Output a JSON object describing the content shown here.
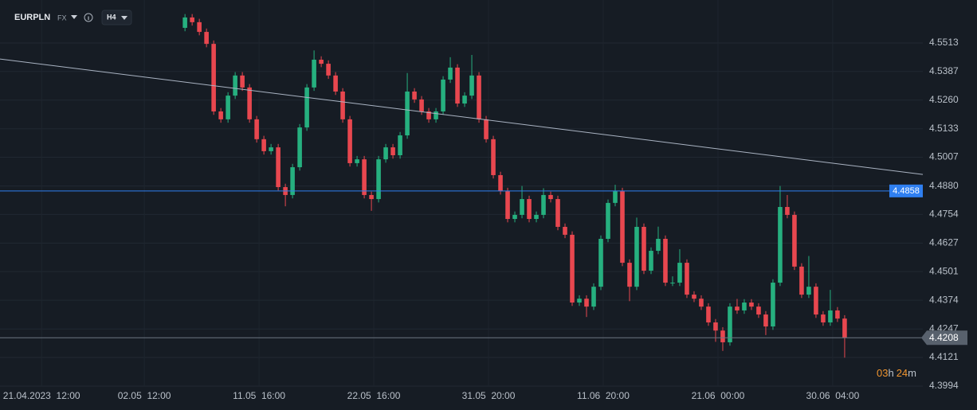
{
  "chart_data": {
    "type": "candlestick",
    "symbol": "EURPLN",
    "market": "FX",
    "timeframe": "H4",
    "countdown": [
      "03",
      "h",
      "24",
      "m"
    ],
    "up_color": "#26b07f",
    "down_color": "#e8474f",
    "grid": true,
    "ylim": [
      4.3994,
      4.5668
    ],
    "yticks": [
      4.5513,
      4.5387,
      {
        "value": 4.526,
        "label": "4.5260"
      },
      4.5133,
      4.5007,
      {
        "value": 4.488,
        "label": "4.4880"
      },
      4.4754,
      4.4627,
      4.4501,
      4.4374,
      4.4247,
      4.4121,
      4.3994
    ],
    "xlim": [
      -25.8,
      102.9
    ],
    "xticks": [
      {
        "value": -20,
        "label": "21.04.2023  12:00"
      },
      {
        "value": -5.67,
        "label": "02.05  12:00"
      },
      {
        "value": 10.33,
        "label": "11.05  16:00"
      },
      {
        "value": 26.33,
        "label": "22.05  16:00"
      },
      {
        "value": 42.33,
        "label": "31.05  20:00"
      },
      {
        "value": 58.33,
        "label": "11.06  20:00"
      },
      {
        "value": 74.33,
        "label": "21.06  00:00"
      },
      {
        "value": 90.33,
        "label": "30.06  04:00"
      }
    ],
    "horizontal_line": {
      "value": 4.4858,
      "label": "4.4858",
      "color": "#2f7ff0"
    },
    "last_price": {
      "value": 4.4208,
      "label": "4.4208"
    },
    "trend_line": {
      "x": [
        -25.8,
        102.9
      ],
      "y": [
        4.5442,
        4.4931
      ],
      "color": "#aab4c3"
    },
    "candles": [
      [
        4.558,
        4.5641,
        4.5565,
        4.5626
      ],
      [
        4.5626,
        4.5641,
        4.559,
        4.5605
      ],
      [
        4.5605,
        4.562,
        4.5547,
        4.5562
      ],
      [
        4.5562,
        4.5577,
        4.5494,
        4.5509
      ],
      [
        4.5509,
        4.5524,
        4.5195,
        4.521
      ],
      [
        4.521,
        4.5225,
        4.516,
        4.5175
      ],
      [
        4.5175,
        4.5295,
        4.516,
        4.528
      ],
      [
        4.528,
        4.5384,
        4.5265,
        4.5369
      ],
      [
        4.5369,
        4.5384,
        4.5301,
        4.5316
      ],
      [
        4.5316,
        4.5331,
        4.516,
        4.5175
      ],
      [
        4.5175,
        4.519,
        4.5072,
        4.5087
      ],
      [
        4.5087,
        4.5102,
        4.5019,
        4.5034
      ],
      [
        4.5034,
        4.5066,
        4.5019,
        4.5051
      ],
      [
        4.5051,
        4.5066,
        4.486,
        4.4875
      ],
      [
        4.4875,
        4.489,
        4.479,
        4.484
      ],
      [
        4.484,
        4.4978,
        4.4825,
        4.4963
      ],
      [
        4.4963,
        4.5154,
        4.4948,
        4.5139
      ],
      [
        4.5139,
        4.5331,
        4.5124,
        4.5316
      ],
      [
        4.5316,
        4.548,
        4.5301,
        4.5439
      ],
      [
        4.5439,
        4.5454,
        4.5406,
        4.5421
      ],
      [
        4.5421,
        4.5436,
        4.5354,
        4.5369
      ],
      [
        4.5369,
        4.5384,
        4.5283,
        4.5298
      ],
      [
        4.5298,
        4.5313,
        4.516,
        4.5175
      ],
      [
        4.5175,
        4.519,
        4.4966,
        4.4981
      ],
      [
        4.4981,
        4.5013,
        4.4966,
        4.4998
      ],
      [
        4.4998,
        4.5013,
        4.4825,
        4.484
      ],
      [
        4.484,
        4.4855,
        4.477,
        4.4822
      ],
      [
        4.4822,
        4.5013,
        4.4807,
        4.4998
      ],
      [
        4.4998,
        4.5066,
        4.4983,
        4.5051
      ],
      [
        4.5051,
        4.5066,
        4.5001,
        4.5016
      ],
      [
        4.5016,
        4.5119,
        4.5001,
        4.5104
      ],
      [
        4.5104,
        4.538,
        4.5089,
        4.5298
      ],
      [
        4.5298,
        4.5313,
        4.5248,
        4.5263
      ],
      [
        4.5263,
        4.5278,
        4.5195,
        4.521
      ],
      [
        4.521,
        4.5225,
        4.516,
        4.5175
      ],
      [
        4.5175,
        4.5225,
        4.516,
        4.521
      ],
      [
        4.521,
        4.5366,
        4.5195,
        4.5351
      ],
      [
        4.5351,
        4.545,
        4.5336,
        4.5404
      ],
      [
        4.5404,
        4.5419,
        4.523,
        4.5245
      ],
      [
        4.5245,
        4.5295,
        4.523,
        4.528
      ],
      [
        4.528,
        4.546,
        4.5265,
        4.5369
      ],
      [
        4.5369,
        4.5384,
        4.516,
        4.5175
      ],
      [
        4.5175,
        4.519,
        4.5072,
        4.5087
      ],
      [
        4.5087,
        4.5102,
        4.4913,
        4.4928
      ],
      [
        4.4928,
        4.4943,
        4.4842,
        4.4857
      ],
      [
        4.4857,
        4.4872,
        4.4719,
        4.4734
      ],
      [
        4.4734,
        4.4767,
        4.4719,
        4.4752
      ],
      [
        4.4752,
        4.488,
        4.4737,
        4.4822
      ],
      [
        4.4822,
        4.4837,
        4.4719,
        4.4734
      ],
      [
        4.4734,
        4.4767,
        4.4719,
        4.4752
      ],
      [
        4.4752,
        4.487,
        4.4737,
        4.484
      ],
      [
        4.484,
        4.4855,
        4.4807,
        4.4822
      ],
      [
        4.4822,
        4.4837,
        4.4684,
        4.4699
      ],
      [
        4.4699,
        4.4714,
        4.4649,
        4.4664
      ],
      [
        4.4664,
        4.4679,
        4.4349,
        4.4364
      ],
      [
        4.4364,
        4.4396,
        4.4349,
        4.4381
      ],
      [
        4.4381,
        4.4396,
        4.43,
        4.4346
      ],
      [
        4.4346,
        4.4449,
        4.4331,
        4.4434
      ],
      [
        4.4434,
        4.4661,
        4.4419,
        4.4646
      ],
      [
        4.4646,
        4.482,
        4.4631,
        4.4805
      ],
      [
        4.4805,
        4.4885,
        4.479,
        4.4857
      ],
      [
        4.4857,
        4.4872,
        4.4525,
        4.454
      ],
      [
        4.454,
        4.4555,
        4.437,
        4.4434
      ],
      [
        4.4434,
        4.474,
        4.4419,
        4.4699
      ],
      [
        4.4699,
        4.4714,
        4.449,
        4.4505
      ],
      [
        4.4505,
        4.4608,
        4.449,
        4.4593
      ],
      [
        4.4593,
        4.47,
        4.4578,
        4.4646
      ],
      [
        4.4646,
        4.4661,
        4.4437,
        4.4452
      ],
      [
        4.4452,
        4.448,
        4.4437,
        4.4452
      ],
      [
        4.4452,
        4.46,
        4.4437,
        4.454
      ],
      [
        4.454,
        4.4555,
        4.4384,
        4.4399
      ],
      [
        4.4399,
        4.4414,
        4.4366,
        4.4381
      ],
      [
        4.4381,
        4.4396,
        4.4331,
        4.4346
      ],
      [
        4.4346,
        4.4361,
        4.4261,
        4.4276
      ],
      [
        4.4276,
        4.4291,
        4.419,
        4.424
      ],
      [
        4.424,
        4.4255,
        4.415,
        4.4188
      ],
      [
        4.4188,
        4.4361,
        4.4173,
        4.4346
      ],
      [
        4.4346,
        4.438,
        4.4314,
        4.4329
      ],
      [
        4.4329,
        4.4379,
        4.4314,
        4.4364
      ],
      [
        4.4364,
        4.4379,
        4.4331,
        4.4346
      ],
      [
        4.4346,
        4.4361,
        4.4296,
        4.4311
      ],
      [
        4.4311,
        4.4326,
        4.422,
        4.4258
      ],
      [
        4.4258,
        4.4467,
        4.4243,
        4.4452
      ],
      [
        4.4452,
        4.488,
        4.4437,
        4.4787
      ],
      [
        4.4787,
        4.484,
        4.4737,
        4.4752
      ],
      [
        4.4752,
        4.4767,
        4.4508,
        4.4523
      ],
      [
        4.4523,
        4.4538,
        4.4384,
        4.4399
      ],
      [
        4.4399,
        4.457,
        4.4384,
        4.4434
      ],
      [
        4.4434,
        4.4449,
        4.4296,
        4.4311
      ],
      [
        4.4311,
        4.4326,
        4.4261,
        4.4276
      ],
      [
        4.4276,
        4.442,
        4.4261,
        4.4329
      ],
      [
        4.4329,
        4.4344,
        4.4278,
        4.4293
      ],
      [
        4.4293,
        4.4308,
        4.412,
        4.4208
      ]
    ]
  }
}
